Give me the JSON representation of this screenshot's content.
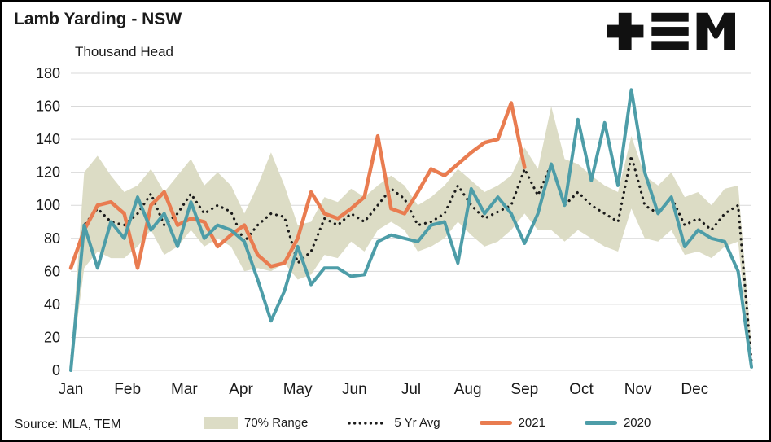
{
  "header": {
    "title": "Lamb Yarding - NSW",
    "subtitle": "Thousand Head",
    "logo": "TEM"
  },
  "source": "Source: MLA, TEM",
  "legend": [
    {
      "label": "70% Range"
    },
    {
      "label": "5 Yr Avg"
    },
    {
      "label": "2021"
    },
    {
      "label": "2020"
    }
  ],
  "chart_data": {
    "type": "line",
    "title": "Lamb Yarding - NSW",
    "ylabel": "Thousand Head",
    "xlabel": "",
    "ylim": [
      0,
      180
    ],
    "ytick_step": 20,
    "grid": true,
    "legend_position": "bottom",
    "x_unit": "weeks",
    "months": [
      "Jan",
      "Feb",
      "Mar",
      "Apr",
      "May",
      "Jun",
      "Jul",
      "Aug",
      "Sep",
      "Oct",
      "Nov",
      "Dec"
    ],
    "colors": {
      "band": "#dcdcc5",
      "avg": "#1a1a1a",
      "y2021": "#e97c50",
      "y2020": "#4d9da8",
      "grid": "#d9d9d9"
    },
    "band_upper": [
      5,
      120,
      130,
      118,
      108,
      112,
      122,
      108,
      118,
      128,
      112,
      120,
      112,
      95,
      112,
      132,
      112,
      88,
      90,
      105,
      102,
      110,
      105,
      112,
      118,
      112,
      100,
      105,
      112,
      122,
      115,
      108,
      112,
      118,
      135,
      122,
      160,
      128,
      125,
      118,
      112,
      108,
      142,
      118,
      112,
      120,
      105,
      108,
      100,
      110,
      112,
      15
    ],
    "band_lower": [
      0,
      62,
      72,
      68,
      68,
      75,
      85,
      70,
      75,
      85,
      75,
      80,
      75,
      60,
      62,
      60,
      65,
      55,
      58,
      70,
      68,
      78,
      72,
      85,
      90,
      85,
      72,
      75,
      80,
      90,
      82,
      75,
      78,
      85,
      95,
      85,
      85,
      78,
      85,
      80,
      75,
      72,
      98,
      80,
      78,
      85,
      70,
      72,
      68,
      75,
      78,
      0
    ],
    "avg_5yr": [
      2,
      88,
      98,
      90,
      88,
      95,
      107,
      88,
      95,
      107,
      95,
      100,
      96,
      78,
      88,
      95,
      93,
      65,
      72,
      92,
      88,
      95,
      90,
      100,
      110,
      104,
      88,
      90,
      95,
      112,
      100,
      92,
      96,
      100,
      122,
      106,
      125,
      100,
      108,
      100,
      95,
      90,
      130,
      100,
      95,
      105,
      88,
      92,
      85,
      95,
      100,
      5
    ],
    "y2020": [
      0,
      88,
      62,
      90,
      80,
      105,
      85,
      95,
      75,
      102,
      80,
      88,
      85,
      78,
      55,
      30,
      48,
      75,
      52,
      62,
      62,
      57,
      58,
      78,
      82,
      80,
      78,
      88,
      90,
      65,
      110,
      95,
      105,
      95,
      77,
      95,
      125,
      100,
      152,
      115,
      150,
      112,
      170,
      120,
      95,
      105,
      75,
      85,
      80,
      78,
      60,
      2
    ],
    "y2021": [
      62,
      85,
      100,
      102,
      95,
      62,
      100,
      108,
      88,
      92,
      90,
      75,
      82,
      88,
      70,
      63,
      65,
      80,
      108,
      95,
      92,
      98,
      105,
      142,
      98,
      95,
      108,
      122,
      118,
      125,
      132,
      138,
      140,
      162,
      123
    ]
  }
}
